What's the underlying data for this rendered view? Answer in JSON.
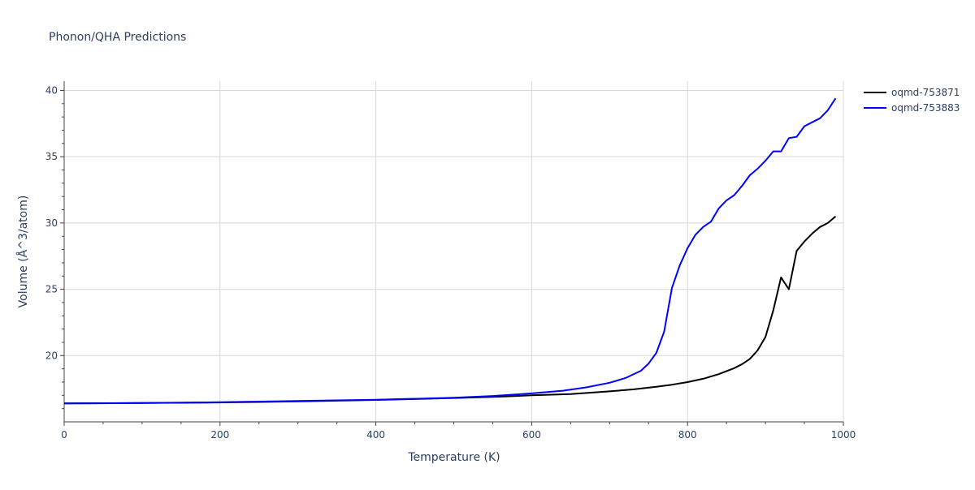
{
  "chart_data": {
    "type": "line",
    "title": "Phonon/QHA Predictions",
    "xlabel": "Temperature (K)",
    "ylabel": "Volume (Å^3/atom)",
    "xlim": [
      0,
      1000
    ],
    "ylim": [
      15,
      40.7
    ],
    "x_ticks": [
      0,
      200,
      400,
      600,
      800,
      1000
    ],
    "y_ticks": [
      20,
      25,
      30,
      35,
      40
    ],
    "grid": true,
    "legend_position": "top-right",
    "series": [
      {
        "name": "oqmd-753871",
        "color": "#000000",
        "x": [
          0,
          100,
          180,
          250,
          300,
          350,
          400,
          450,
          500,
          550,
          600,
          650,
          700,
          730,
          760,
          780,
          800,
          820,
          840,
          860,
          870,
          880,
          890,
          900,
          910,
          920,
          930,
          940,
          950,
          960,
          970,
          980,
          990
        ],
        "y": [
          16.4,
          16.42,
          16.45,
          16.5,
          16.55,
          16.6,
          16.65,
          16.72,
          16.8,
          16.88,
          17.0,
          17.1,
          17.3,
          17.45,
          17.65,
          17.8,
          18.0,
          18.25,
          18.6,
          19.05,
          19.35,
          19.75,
          20.4,
          21.4,
          23.4,
          25.9,
          25.0,
          27.9,
          28.6,
          29.2,
          29.7,
          30.0,
          30.5
        ]
      },
      {
        "name": "oqmd-753883",
        "color": "#0000ff",
        "x": [
          0,
          100,
          200,
          300,
          400,
          500,
          550,
          600,
          640,
          670,
          700,
          720,
          740,
          750,
          760,
          770,
          780,
          790,
          800,
          810,
          820,
          830,
          840,
          850,
          860,
          870,
          880,
          890,
          900,
          910,
          920,
          930,
          940,
          950,
          960,
          970,
          980,
          990
        ],
        "y": [
          16.38,
          16.42,
          16.48,
          16.57,
          16.67,
          16.82,
          16.95,
          17.15,
          17.35,
          17.6,
          17.95,
          18.3,
          18.85,
          19.4,
          20.2,
          21.8,
          25.1,
          26.8,
          28.1,
          29.1,
          29.7,
          30.1,
          31.1,
          31.7,
          32.1,
          32.8,
          33.6,
          34.1,
          34.7,
          35.4,
          35.4,
          36.4,
          36.5,
          37.3,
          37.6,
          37.9,
          38.5,
          39.4
        ]
      }
    ]
  }
}
